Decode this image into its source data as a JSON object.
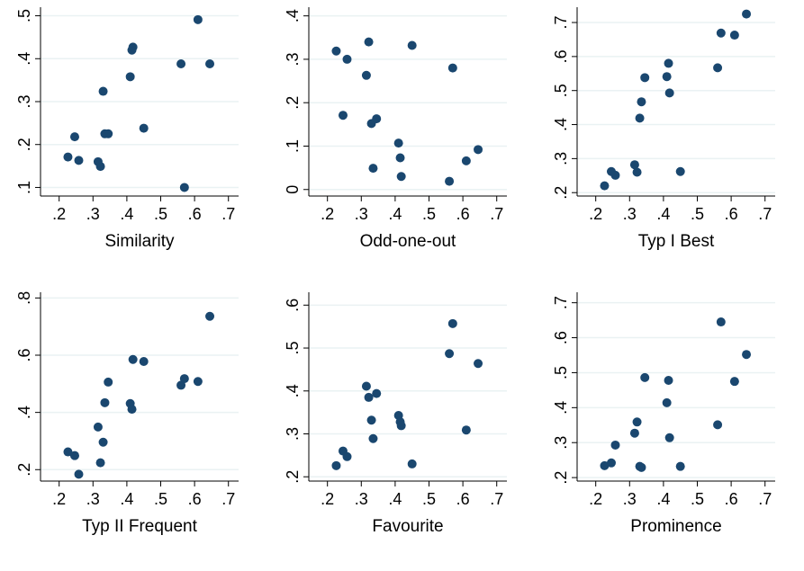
{
  "chart_data": [
    {
      "type": "scatter",
      "x_label": "Similarity",
      "color": "#1a476f",
      "grid": true,
      "x": [
        0.226,
        0.246,
        0.258,
        0.315,
        0.322,
        0.33,
        0.335,
        0.345,
        0.41,
        0.415,
        0.418,
        0.45,
        0.56,
        0.57,
        0.61,
        0.645
      ],
      "values": [
        0.171,
        0.218,
        0.163,
        0.16,
        0.149,
        0.324,
        0.225,
        0.225,
        0.358,
        0.42,
        0.427,
        0.238,
        0.388,
        0.1,
        0.491,
        0.388
      ],
      "xlim": [
        0.145,
        0.73
      ],
      "xticks": [
        {
          "value": 0.2,
          "label": ".2"
        },
        {
          "value": 0.3,
          "label": ".3"
        },
        {
          "value": 0.4,
          "label": ".4"
        },
        {
          "value": 0.5,
          "label": ".5"
        },
        {
          "value": 0.6,
          "label": ".6"
        },
        {
          "value": 0.7,
          "label": ".7"
        }
      ],
      "ylim": [
        0.08,
        0.52
      ],
      "yticks": [
        {
          "value": 0.1,
          "label": ".1"
        },
        {
          "value": 0.2,
          "label": ".2"
        },
        {
          "value": 0.3,
          "label": ".3"
        },
        {
          "value": 0.4,
          "label": ".4"
        },
        {
          "value": 0.5,
          "label": ".5"
        }
      ]
    },
    {
      "type": "scatter",
      "x_label": "Odd-one-out",
      "color": "#1a476f",
      "grid": true,
      "x": [
        0.226,
        0.246,
        0.258,
        0.315,
        0.322,
        0.33,
        0.335,
        0.345,
        0.41,
        0.415,
        0.418,
        0.45,
        0.56,
        0.57,
        0.61,
        0.645
      ],
      "values": [
        0.319,
        0.171,
        0.3,
        0.263,
        0.34,
        0.152,
        0.049,
        0.163,
        0.107,
        0.073,
        0.03,
        0.332,
        0.019,
        0.28,
        0.066,
        0.092
      ],
      "xlim": [
        0.145,
        0.73
      ],
      "xticks": [
        {
          "value": 0.2,
          "label": ".2"
        },
        {
          "value": 0.3,
          "label": ".3"
        },
        {
          "value": 0.4,
          "label": ".4"
        },
        {
          "value": 0.5,
          "label": ".5"
        },
        {
          "value": 0.6,
          "label": ".6"
        },
        {
          "value": 0.7,
          "label": ".7"
        }
      ],
      "ylim": [
        -0.015,
        0.42
      ],
      "yticks": [
        0,
        {
          "value": 0.1,
          "label": ".1"
        },
        {
          "value": 0.2,
          "label": ".2"
        },
        {
          "value": 0.3,
          "label": ".3"
        },
        {
          "value": 0.4,
          "label": ".4"
        }
      ]
    },
    {
      "type": "scatter",
      "x_label": "Typ I Best",
      "color": "#1a476f",
      "grid": true,
      "x": [
        0.226,
        0.246,
        0.258,
        0.315,
        0.322,
        0.33,
        0.335,
        0.345,
        0.41,
        0.415,
        0.418,
        0.45,
        0.56,
        0.57,
        0.61,
        0.645
      ],
      "values": [
        0.22,
        0.262,
        0.251,
        0.282,
        0.26,
        0.419,
        0.467,
        0.538,
        0.541,
        0.58,
        0.493,
        0.262,
        0.567,
        0.669,
        0.663,
        0.725
      ],
      "xlim": [
        0.145,
        0.73
      ],
      "xticks": [
        {
          "value": 0.2,
          "label": ".2"
        },
        {
          "value": 0.3,
          "label": ".3"
        },
        {
          "value": 0.4,
          "label": ".4"
        },
        {
          "value": 0.5,
          "label": ".5"
        },
        {
          "value": 0.6,
          "label": ".6"
        },
        {
          "value": 0.7,
          "label": ".7"
        }
      ],
      "ylim": [
        0.19,
        0.745
      ],
      "yticks": [
        {
          "value": 0.2,
          "label": ".2"
        },
        {
          "value": 0.3,
          "label": ".3"
        },
        {
          "value": 0.4,
          "label": ".4"
        },
        {
          "value": 0.5,
          "label": ".5"
        },
        {
          "value": 0.6,
          "label": ".6"
        },
        {
          "value": 0.7,
          "label": ".7"
        }
      ]
    },
    {
      "type": "scatter",
      "x_label": "Typ II Frequent",
      "color": "#1a476f",
      "grid": true,
      "x": [
        0.226,
        0.246,
        0.258,
        0.315,
        0.322,
        0.33,
        0.335,
        0.345,
        0.41,
        0.415,
        0.418,
        0.45,
        0.56,
        0.57,
        0.61,
        0.645
      ],
      "values": [
        0.262,
        0.249,
        0.184,
        0.349,
        0.224,
        0.296,
        0.434,
        0.506,
        0.431,
        0.411,
        0.585,
        0.578,
        0.495,
        0.518,
        0.508,
        0.736
      ],
      "xlim": [
        0.145,
        0.73
      ],
      "xticks": [
        {
          "value": 0.2,
          "label": ".2"
        },
        {
          "value": 0.3,
          "label": ".3"
        },
        {
          "value": 0.4,
          "label": ".4"
        },
        {
          "value": 0.5,
          "label": ".5"
        },
        {
          "value": 0.6,
          "label": ".6"
        },
        {
          "value": 0.7,
          "label": ".7"
        }
      ],
      "ylim": [
        0.16,
        0.82
      ],
      "yticks": [
        {
          "value": 0.2,
          "label": ".2"
        },
        {
          "value": 0.4,
          "label": ".4"
        },
        {
          "value": 0.6,
          "label": ".6"
        },
        {
          "value": 0.8,
          "label": ".8"
        }
      ]
    },
    {
      "type": "scatter",
      "x_label": "Favourite",
      "color": "#1a476f",
      "grid": true,
      "x": [
        0.226,
        0.246,
        0.258,
        0.315,
        0.322,
        0.33,
        0.335,
        0.345,
        0.41,
        0.415,
        0.418,
        0.45,
        0.56,
        0.57,
        0.61,
        0.645
      ],
      "values": [
        0.226,
        0.26,
        0.247,
        0.411,
        0.385,
        0.332,
        0.289,
        0.394,
        0.343,
        0.328,
        0.319,
        0.23,
        0.487,
        0.557,
        0.309,
        0.464
      ],
      "xlim": [
        0.145,
        0.73
      ],
      "xticks": [
        {
          "value": 0.2,
          "label": ".2"
        },
        {
          "value": 0.3,
          "label": ".3"
        },
        {
          "value": 0.4,
          "label": ".4"
        },
        {
          "value": 0.5,
          "label": ".5"
        },
        {
          "value": 0.6,
          "label": ".6"
        },
        {
          "value": 0.7,
          "label": ".7"
        }
      ],
      "ylim": [
        0.19,
        0.63
      ],
      "yticks": [
        {
          "value": 0.2,
          "label": ".2"
        },
        {
          "value": 0.3,
          "label": ".3"
        },
        {
          "value": 0.4,
          "label": ".4"
        },
        {
          "value": 0.5,
          "label": ".5"
        },
        {
          "value": 0.6,
          "label": ".6"
        }
      ]
    },
    {
      "type": "scatter",
      "x_label": "Prominence",
      "color": "#1a476f",
      "grid": true,
      "x": [
        0.226,
        0.246,
        0.258,
        0.315,
        0.322,
        0.33,
        0.335,
        0.345,
        0.41,
        0.415,
        0.418,
        0.45,
        0.56,
        0.57,
        0.61,
        0.645
      ],
      "values": [
        0.234,
        0.242,
        0.293,
        0.327,
        0.359,
        0.232,
        0.229,
        0.486,
        0.414,
        0.478,
        0.314,
        0.232,
        0.351,
        0.645,
        0.475,
        0.552
      ],
      "xlim": [
        0.145,
        0.73
      ],
      "xticks": [
        {
          "value": 0.2,
          "label": ".2"
        },
        {
          "value": 0.3,
          "label": ".3"
        },
        {
          "value": 0.4,
          "label": ".4"
        },
        {
          "value": 0.5,
          "label": ".5"
        },
        {
          "value": 0.6,
          "label": ".6"
        },
        {
          "value": 0.7,
          "label": ".7"
        }
      ],
      "ylim": [
        0.19,
        0.73
      ],
      "yticks": [
        {
          "value": 0.2,
          "label": ".2"
        },
        {
          "value": 0.3,
          "label": ".3"
        },
        {
          "value": 0.4,
          "label": ".4"
        },
        {
          "value": 0.5,
          "label": ".5"
        },
        {
          "value": 0.6,
          "label": ".6"
        },
        {
          "value": 0.7,
          "label": ".7"
        }
      ]
    }
  ]
}
